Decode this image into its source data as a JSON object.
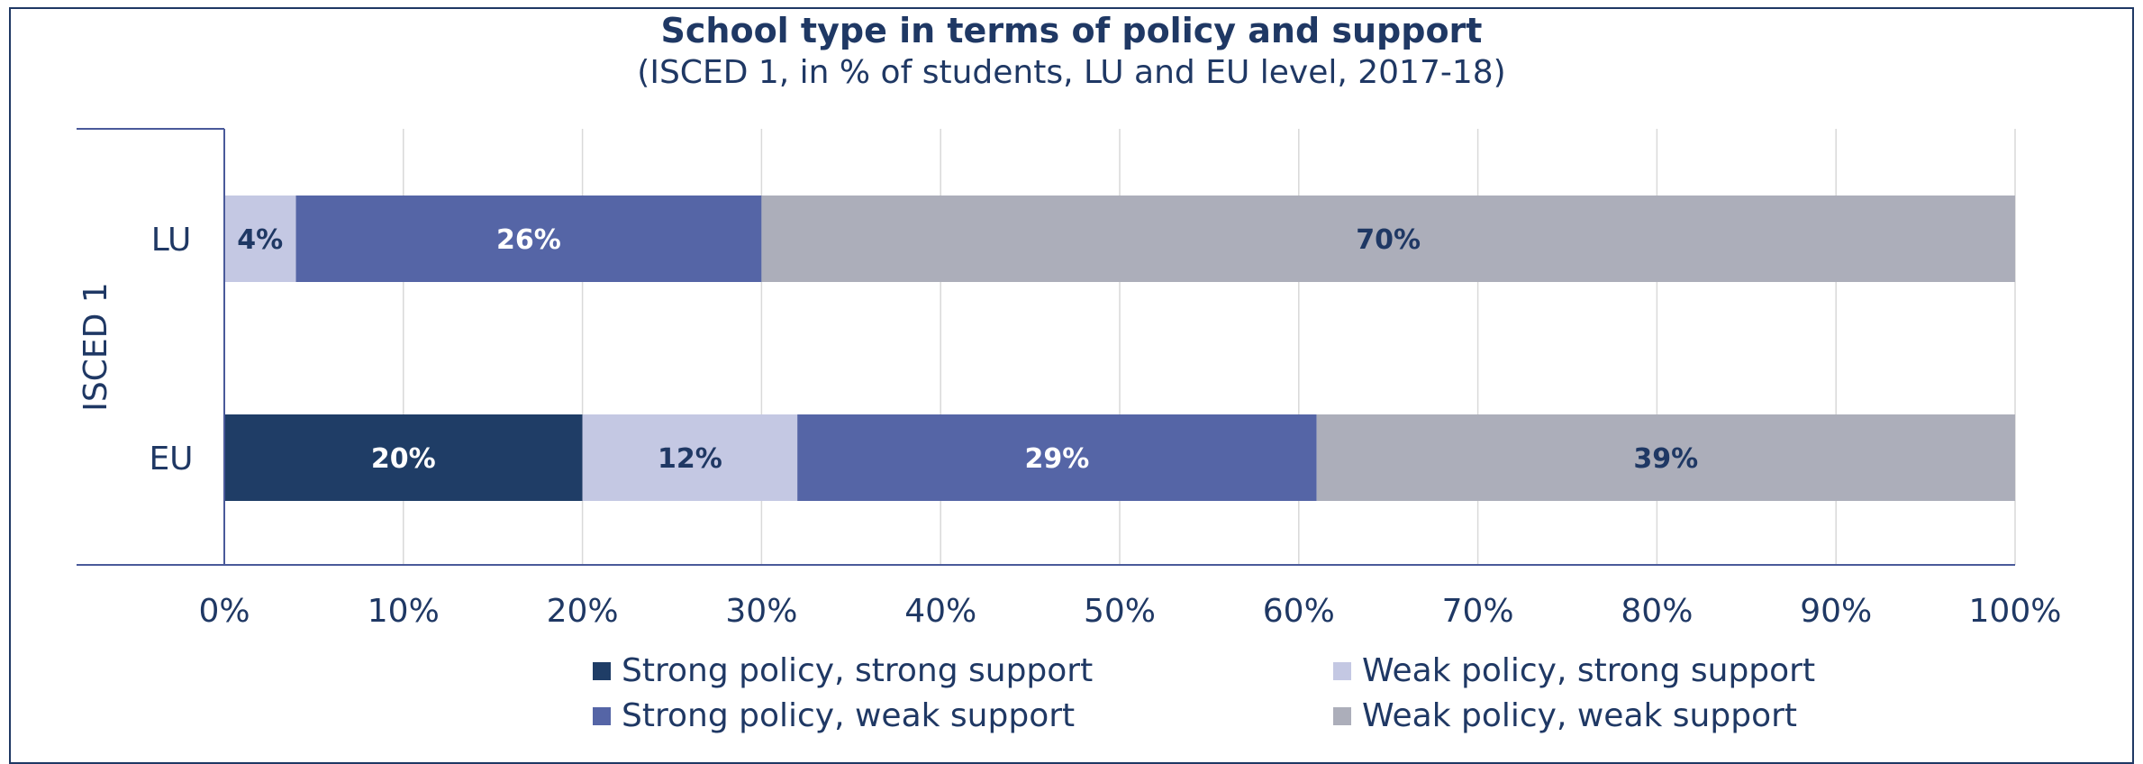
{
  "chart_data": {
    "type": "bar",
    "orientation": "horizontal",
    "stacked": true,
    "title": "School type in terms of policy and support",
    "subtitle": "(ISCED 1, in % of students, LU and EU level, 2017-18)",
    "ylabel": "ISCED 1",
    "categories": [
      "LU",
      "EU"
    ],
    "xlim": [
      0,
      100
    ],
    "xticks": [
      "0%",
      "10%",
      "20%",
      "30%",
      "40%",
      "50%",
      "60%",
      "70%",
      "80%",
      "90%",
      "100%"
    ],
    "grid": true,
    "legend_position": "bottom",
    "series": [
      {
        "name": "Strong policy, strong support",
        "color": "#1f3d66",
        "label_color": "#ffffff",
        "values": [
          0,
          20
        ],
        "labels": [
          "",
          "20%"
        ]
      },
      {
        "name": "Weak policy, strong support",
        "color": "#c4c8e3",
        "label_color": "#1f3864",
        "values": [
          4,
          12
        ],
        "labels": [
          "4%",
          "12%"
        ]
      },
      {
        "name": "Strong policy, weak support",
        "color": "#5565a6",
        "label_color": "#ffffff",
        "values": [
          26,
          29
        ],
        "labels": [
          "26%",
          "29%"
        ]
      },
      {
        "name": "Weak policy, weak support",
        "color": "#acaeba",
        "label_color": "#1f3864",
        "values": [
          70,
          39
        ],
        "labels": [
          "70%",
          "39%"
        ]
      }
    ]
  }
}
